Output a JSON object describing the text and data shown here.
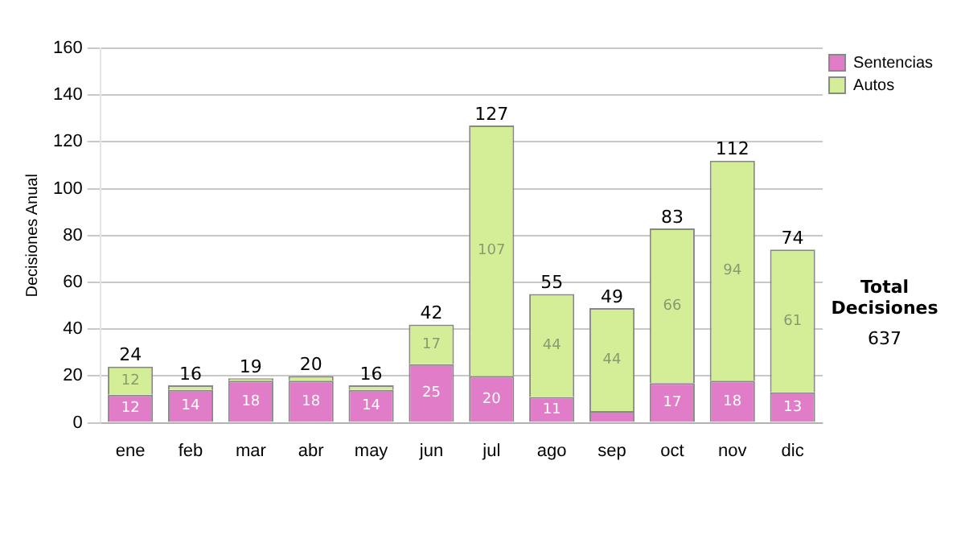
{
  "chart_data": {
    "type": "bar",
    "stacked": true,
    "ylabel": "Decisiones Anual",
    "categories": [
      "ene",
      "feb",
      "mar",
      "abr",
      "may",
      "jun",
      "jul",
      "ago",
      "sep",
      "oct",
      "nov",
      "dic"
    ],
    "series": [
      {
        "name": "Sentencias",
        "color": "#e07cc8",
        "values": [
          12,
          14,
          18,
          18,
          14,
          25,
          20,
          11,
          5,
          17,
          18,
          13
        ],
        "value_labels": [
          "12",
          "14",
          "18",
          "18",
          "14",
          "25",
          "20",
          "11",
          null,
          "17",
          "18",
          "13"
        ]
      },
      {
        "name": "Autos",
        "color": "#d4ee98",
        "values": [
          12,
          2,
          1,
          2,
          2,
          17,
          107,
          44,
          44,
          66,
          94,
          61
        ],
        "value_labels": [
          "12",
          null,
          null,
          null,
          null,
          "17",
          "107",
          "44",
          "44",
          "66",
          "94",
          "61"
        ]
      }
    ],
    "totals": [
      "24",
      "16",
      "19",
      "20",
      "16",
      "42",
      "127",
      "55",
      "49",
      "83",
      "112",
      "74"
    ],
    "ylim": [
      0,
      160
    ],
    "yticks": [
      0,
      20,
      40,
      60,
      80,
      100,
      120,
      140,
      160
    ],
    "grid": "y",
    "legend": "right",
    "annotations": [
      "Total Decisiones",
      "637"
    ]
  }
}
